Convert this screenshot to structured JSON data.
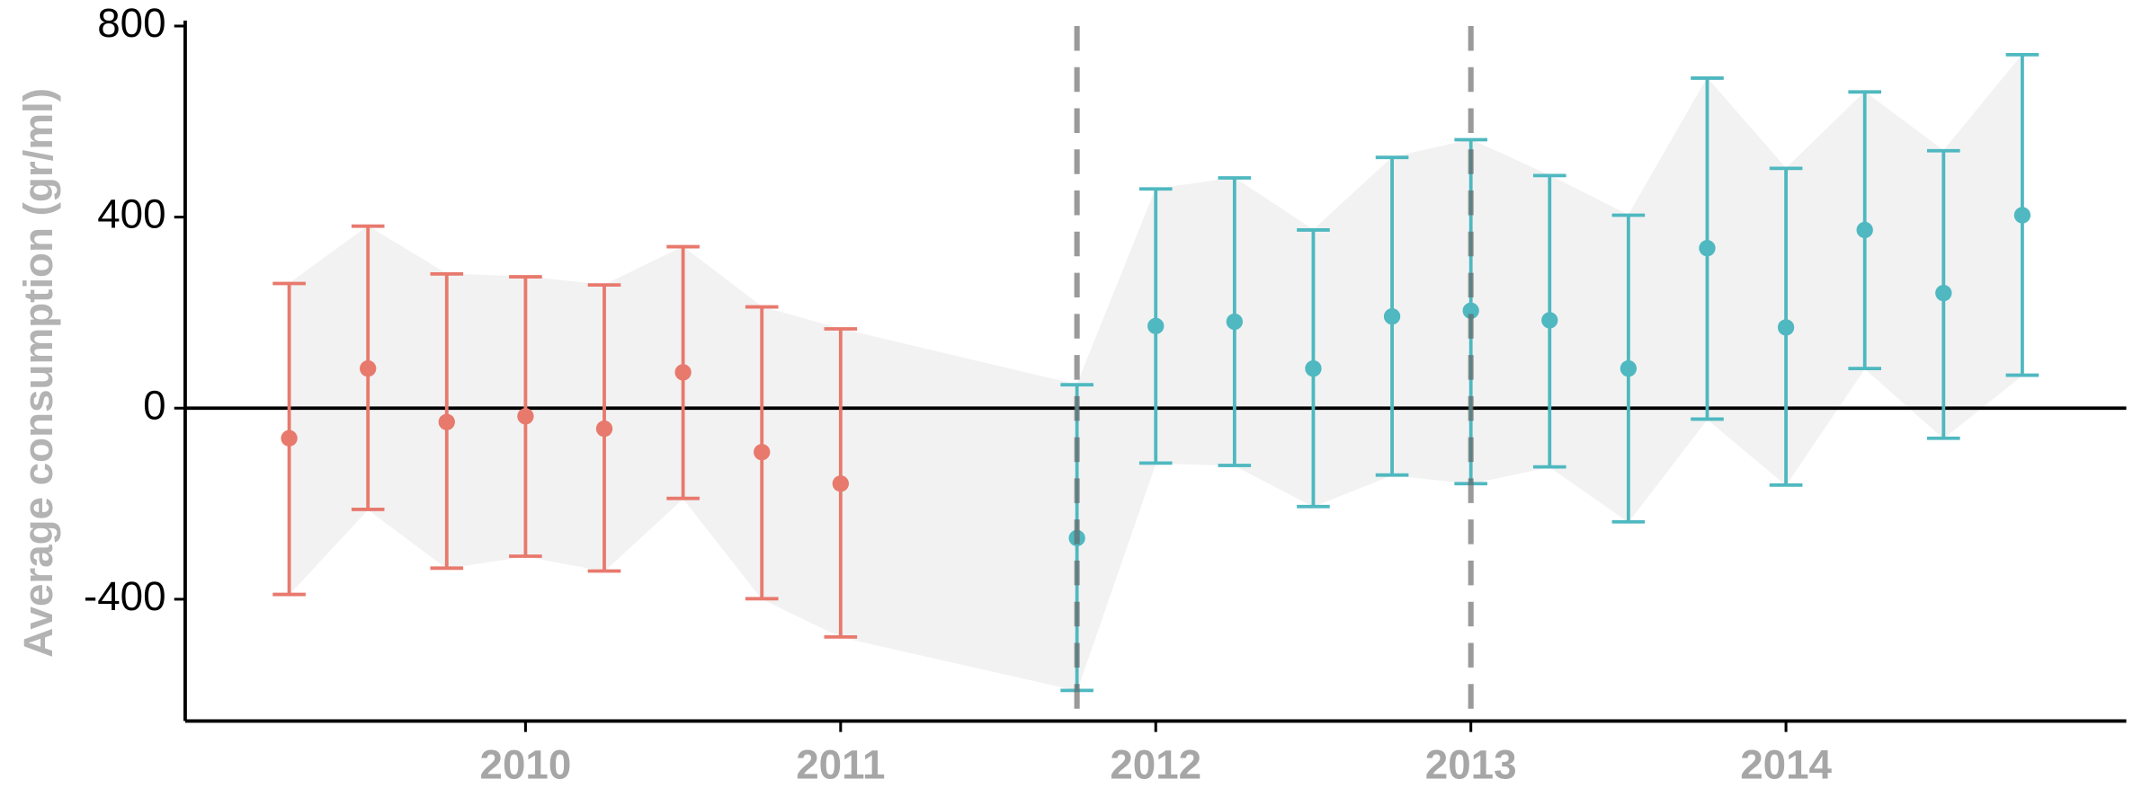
{
  "chart_data": {
    "type": "errorbar",
    "ylabel": "Average consumption (gr/ml)",
    "xlim": [
      2008.92,
      2015.08
    ],
    "ylim": [
      -655,
      800
    ],
    "xticks": [
      2010,
      2011,
      2012,
      2013,
      2014
    ],
    "yticks": [
      -400,
      0,
      400,
      800
    ],
    "hline": 0,
    "vlines": [
      2011.75,
      2013
    ],
    "ribbon_color": "#f2f2f2",
    "series": [
      {
        "color": "#e8796d",
        "x": [
          2009.25,
          2009.5,
          2009.75,
          2010,
          2010.25,
          2010.5,
          2010.75,
          2011
        ],
        "values": [
          -63,
          83,
          -29,
          -17,
          -43,
          75,
          -92,
          -158
        ],
        "lower": [
          -390,
          -212,
          -335,
          -310,
          -341,
          -189,
          -399,
          -479
        ],
        "upper": [
          261,
          381,
          281,
          275,
          258,
          338,
          212,
          166
        ]
      },
      {
        "color": "#4fb8c0",
        "x": [
          2011.75,
          2012,
          2012.25,
          2012.5,
          2012.75,
          2013,
          2013.25,
          2013.5,
          2013.75,
          2014,
          2014.25,
          2014.5,
          2014.75
        ],
        "values": [
          -272,
          172,
          181,
          83,
          192,
          204,
          184,
          83,
          335,
          169,
          373,
          241,
          404
        ],
        "lower": [
          -591,
          -115,
          -120,
          -206,
          -140,
          -158,
          -123,
          -238,
          -23,
          -161,
          83,
          -63,
          69
        ],
        "upper": [
          49,
          459,
          482,
          373,
          525,
          562,
          487,
          404,
          691,
          502,
          662,
          539,
          740
        ]
      }
    ]
  }
}
